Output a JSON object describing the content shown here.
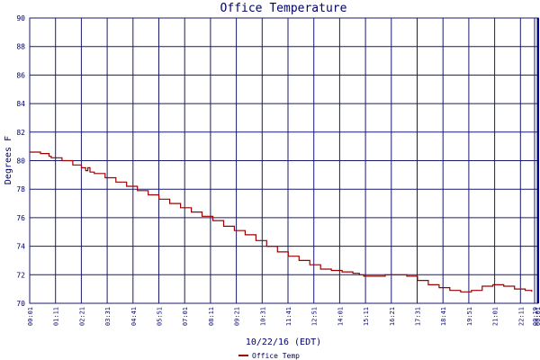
{
  "chart_data": {
    "type": "line",
    "title": "Office Temperature",
    "xlabel": "10/22/16 (EDT)",
    "ylabel": "Degrees F",
    "ylim": [
      70,
      90
    ],
    "yticks": [
      70,
      72,
      74,
      76,
      78,
      80,
      82,
      84,
      86,
      88,
      90
    ],
    "xticks": [
      "00:01",
      "01:11",
      "02:21",
      "03:31",
      "04:41",
      "05:51",
      "07:01",
      "08:11",
      "09:21",
      "10:31",
      "11:41",
      "12:51",
      "14:01",
      "15:11",
      "16:21",
      "17:31",
      "18:41",
      "19:51",
      "21:01",
      "22:11",
      "00:19",
      "00:01"
    ],
    "grid": true,
    "legend_position": "bottom-left",
    "colors": {
      "grid": "#1a1a6e",
      "series": "#990000",
      "text": "#000066",
      "background": "#ffffff"
    },
    "series": [
      {
        "name": "Office Temp",
        "x": [
          0,
          0.5,
          0.9,
          1.0,
          1.5,
          2.0,
          2.4,
          2.6,
          2.7,
          2.8,
          3.0,
          3.5,
          4.0,
          4.5,
          5.0,
          5.5,
          6.0,
          6.5,
          7.0,
          7.5,
          8.0,
          8.5,
          9.0,
          9.5,
          10.0,
          10.5,
          11.0,
          11.5,
          12.0,
          12.5,
          13.0,
          13.5,
          14.0,
          14.5,
          15.0,
          15.3,
          15.5,
          16.0,
          16.5,
          17.0,
          17.5,
          18.0,
          18.5,
          19.0,
          19.5,
          20.0,
          20.5,
          21.0,
          21.5,
          22.0,
          22.5,
          23.0,
          23.3
        ],
        "values": [
          80.6,
          80.5,
          80.3,
          80.2,
          80.0,
          79.7,
          79.5,
          79.3,
          79.5,
          79.2,
          79.1,
          78.8,
          78.5,
          78.2,
          77.9,
          77.6,
          77.3,
          77.0,
          76.7,
          76.4,
          76.1,
          75.8,
          75.4,
          75.1,
          74.8,
          74.4,
          74.0,
          73.6,
          73.3,
          73.0,
          72.7,
          72.4,
          72.3,
          72.2,
          72.1,
          72.0,
          71.9,
          71.9,
          72.0,
          72.0,
          71.9,
          71.6,
          71.3,
          71.1,
          70.9,
          70.8,
          70.9,
          71.2,
          71.3,
          71.2,
          71.0,
          70.9,
          70.8
        ]
      }
    ]
  }
}
